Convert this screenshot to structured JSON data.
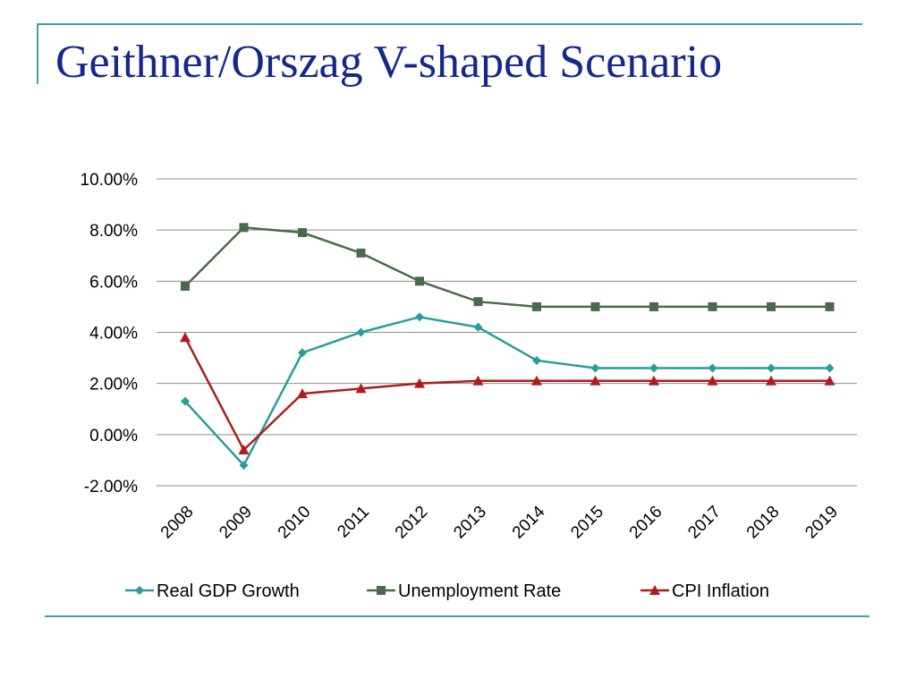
{
  "slide": {
    "title": "Geithner/Orszag V-shaped Scenario"
  },
  "chart_data": {
    "type": "line",
    "title": "",
    "xlabel": "",
    "ylabel": "",
    "categories": [
      "2008",
      "2009",
      "2010",
      "2011",
      "2012",
      "2013",
      "2014",
      "2015",
      "2016",
      "2017",
      "2018",
      "2019"
    ],
    "ylim": [
      -2,
      10
    ],
    "yticks": [
      {
        "value": -2,
        "label": "-2.00%"
      },
      {
        "value": 0,
        "label": "0.00%"
      },
      {
        "value": 2,
        "label": "2.00%"
      },
      {
        "value": 4,
        "label": "4.00%"
      },
      {
        "value": 6,
        "label": "6.00%"
      },
      {
        "value": 8,
        "label": "8.00%"
      },
      {
        "value": 10,
        "label": "10.00%"
      }
    ],
    "grid": true,
    "legend_position": "bottom",
    "series": [
      {
        "name": "Real GDP Growth",
        "color": "#2a9c9c",
        "marker": "diamond",
        "values": [
          1.3,
          -1.2,
          3.2,
          4.0,
          4.6,
          4.2,
          2.9,
          2.6,
          2.6,
          2.6,
          2.6,
          2.6
        ]
      },
      {
        "name": "Unemployment Rate",
        "color": "#4a6b4a",
        "marker": "square",
        "values": [
          5.8,
          8.1,
          7.9,
          7.1,
          6.0,
          5.2,
          5.0,
          5.0,
          5.0,
          5.0,
          5.0,
          5.0
        ]
      },
      {
        "name": "CPI Inflation",
        "color": "#b01c1c",
        "marker": "triangle",
        "values": [
          3.8,
          -0.6,
          1.6,
          1.8,
          2.0,
          2.1,
          2.1,
          2.1,
          2.1,
          2.1,
          2.1,
          2.1
        ]
      }
    ]
  }
}
